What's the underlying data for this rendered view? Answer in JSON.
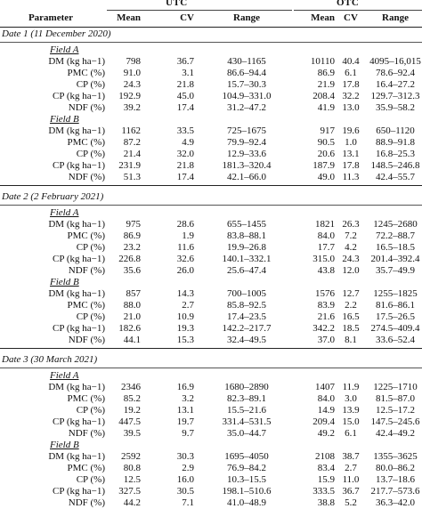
{
  "header": {
    "group_utc": "UTC",
    "group_otc": "OTC",
    "columns": [
      "Parameter",
      "Mean",
      "CV",
      "Range",
      "Mean",
      "CV",
      "Range"
    ]
  },
  "sections": [
    {
      "title": "Date 1 (11 December 2020)",
      "fields": [
        {
          "name": "Field A",
          "rows": [
            {
              "param": "DM (kg ha−1)",
              "u_mean": "798",
              "u_cv": "36.7",
              "u_range": "430–1165",
              "o_mean": "10110",
              "o_cv": "40.4",
              "o_range": "4095–16,015"
            },
            {
              "param": "PMC (%)",
              "u_mean": "91.0",
              "u_cv": "3.1",
              "u_range": "86.6–94.4",
              "o_mean": "86.9",
              "o_cv": "6.1",
              "o_range": "78.6–92.4"
            },
            {
              "param": "CP (%)",
              "u_mean": "24.3",
              "u_cv": "21.8",
              "u_range": "15.7–30.3",
              "o_mean": "21.9",
              "o_cv": "17.8",
              "o_range": "16.4–27.2"
            },
            {
              "param": "CP (kg ha−1)",
              "u_mean": "192.9",
              "u_cv": "45.0",
              "u_range": "104.9–331.0",
              "o_mean": "208.4",
              "o_cv": "32.2",
              "o_range": "129.7–312.3"
            },
            {
              "param": "NDF (%)",
              "u_mean": "39.2",
              "u_cv": "17.4",
              "u_range": "31.2–47.2",
              "o_mean": "41.9",
              "o_cv": "13.0",
              "o_range": "35.9–58.2"
            }
          ]
        },
        {
          "name": "Field B",
          "rows": [
            {
              "param": "DM (kg ha−1)",
              "u_mean": "1162",
              "u_cv": "33.5",
              "u_range": "725–1675",
              "o_mean": "917",
              "o_cv": "19.6",
              "o_range": "650–1120"
            },
            {
              "param": "PMC (%)",
              "u_mean": "87.2",
              "u_cv": "4.9",
              "u_range": "79.9–92.4",
              "o_mean": "90.5",
              "o_cv": "1.0",
              "o_range": "88.9–91.8"
            },
            {
              "param": "CP (%)",
              "u_mean": "21.4",
              "u_cv": "32.0",
              "u_range": "12.9–33.6",
              "o_mean": "20.6",
              "o_cv": "13.1",
              "o_range": "16.8–25.3"
            },
            {
              "param": "CP (kg ha−1)",
              "u_mean": "231.9",
              "u_cv": "21.8",
              "u_range": "181.3–320.4",
              "o_mean": "187.9",
              "o_cv": "17.8",
              "o_range": "148.5–246.8"
            },
            {
              "param": "NDF (%)",
              "u_mean": "51.3",
              "u_cv": "17.4",
              "u_range": "42.1–66.0",
              "o_mean": "49.0",
              "o_cv": "11.3",
              "o_range": "42.4–55.7"
            }
          ]
        }
      ]
    },
    {
      "title": "Date 2 (2 February 2021)",
      "fields": [
        {
          "name": "Field A",
          "rows": [
            {
              "param": "DM (kg ha−1)",
              "u_mean": "975",
              "u_cv": "28.6",
              "u_range": "655–1455",
              "o_mean": "1821",
              "o_cv": "26.3",
              "o_range": "1245–2680"
            },
            {
              "param": "PMC (%)",
              "u_mean": "86.9",
              "u_cv": "1.9",
              "u_range": "83.8–88.1",
              "o_mean": "84.0",
              "o_cv": "7.2",
              "o_range": "72.2–88.7"
            },
            {
              "param": "CP (%)",
              "u_mean": "23.2",
              "u_cv": "11.6",
              "u_range": "19.9–26.8",
              "o_mean": "17.7",
              "o_cv": "4.2",
              "o_range": "16.5–18.5"
            },
            {
              "param": "CP (kg ha−1)",
              "u_mean": "226.8",
              "u_cv": "32.6",
              "u_range": "140.1–332.1",
              "o_mean": "315.0",
              "o_cv": "24.3",
              "o_range": "201.4–392.4"
            },
            {
              "param": "NDF (%)",
              "u_mean": "35.6",
              "u_cv": "26.0",
              "u_range": "25.6–47.4",
              "o_mean": "43.8",
              "o_cv": "12.0",
              "o_range": "35.7–49.9"
            }
          ]
        },
        {
          "name": "Field B",
          "rows": [
            {
              "param": "DM (kg ha−1)",
              "u_mean": "857",
              "u_cv": "14.3",
              "u_range": "700–1005",
              "o_mean": "1576",
              "o_cv": "12.7",
              "o_range": "1255–1825"
            },
            {
              "param": "PMC (%)",
              "u_mean": "88.0",
              "u_cv": "2.7",
              "u_range": "85.8–92.5",
              "o_mean": "83.9",
              "o_cv": "2.2",
              "o_range": "81.6–86.1"
            },
            {
              "param": "CP (%)",
              "u_mean": "21.0",
              "u_cv": "10.9",
              "u_range": "17.4–23.5",
              "o_mean": "21.6",
              "o_cv": "16.5",
              "o_range": "17.5–26.5"
            },
            {
              "param": "CP (kg ha−1)",
              "u_mean": "182.6",
              "u_cv": "19.3",
              "u_range": "142.2–217.7",
              "o_mean": "342.2",
              "o_cv": "18.5",
              "o_range": "274.5–409.4"
            },
            {
              "param": "NDF (%)",
              "u_mean": "44.1",
              "u_cv": "15.3",
              "u_range": "32.4–49.5",
              "o_mean": "37.0",
              "o_cv": "8.1",
              "o_range": "33.6–52.4"
            }
          ]
        }
      ]
    },
    {
      "title": "Date 3 (30 March 2021)",
      "fields": [
        {
          "name": "Field A",
          "rows": [
            {
              "param": "DM (kg ha−1)",
              "u_mean": "2346",
              "u_cv": "16.9",
              "u_range": "1680–2890",
              "o_mean": "1407",
              "o_cv": "11.9",
              "o_range": "1225–1710"
            },
            {
              "param": "PMC (%)",
              "u_mean": "85.2",
              "u_cv": "3.2",
              "u_range": "82.3–89.1",
              "o_mean": "84.0",
              "o_cv": "3.0",
              "o_range": "81.5–87.0"
            },
            {
              "param": "CP (%)",
              "u_mean": "19.2",
              "u_cv": "13.1",
              "u_range": "15.5–21.6",
              "o_mean": "14.9",
              "o_cv": "13.9",
              "o_range": "12.5–17.2"
            },
            {
              "param": "CP (kg ha−1)",
              "u_mean": "447.5",
              "u_cv": "19.7",
              "u_range": "331.4–531.5",
              "o_mean": "209.4",
              "o_cv": "15.0",
              "o_range": "147.5–245.6"
            },
            {
              "param": "NDF (%)",
              "u_mean": "39.5",
              "u_cv": "9.7",
              "u_range": "35.0–44.7",
              "o_mean": "49.2",
              "o_cv": "6.1",
              "o_range": "42.4–49.2"
            }
          ]
        },
        {
          "name": "Field B",
          "rows": [
            {
              "param": "DM (kg ha−1)",
              "u_mean": "2592",
              "u_cv": "30.3",
              "u_range": "1695–4050",
              "o_mean": "2108",
              "o_cv": "38.7",
              "o_range": "1355–3625"
            },
            {
              "param": "PMC (%)",
              "u_mean": "80.8",
              "u_cv": "2.9",
              "u_range": "76.9–84.2",
              "o_mean": "83.4",
              "o_cv": "2.7",
              "o_range": "80.0–86.2"
            },
            {
              "param": "CP (%)",
              "u_mean": "12.5",
              "u_cv": "16.0",
              "u_range": "10.3–15.5",
              "o_mean": "15.9",
              "o_cv": "11.0",
              "o_range": "13.7–18.6"
            },
            {
              "param": "CP (kg ha−1)",
              "u_mean": "327.5",
              "u_cv": "30.5",
              "u_range": "198.1–510.6",
              "o_mean": "333.5",
              "o_cv": "36.7",
              "o_range": "217.7–573.6"
            },
            {
              "param": "NDF (%)",
              "u_mean": "44.2",
              "u_cv": "7.1",
              "u_range": "41.0–48.9",
              "o_mean": "38.8",
              "o_cv": "5.2",
              "o_range": "36.3–42.0"
            }
          ]
        }
      ]
    }
  ]
}
